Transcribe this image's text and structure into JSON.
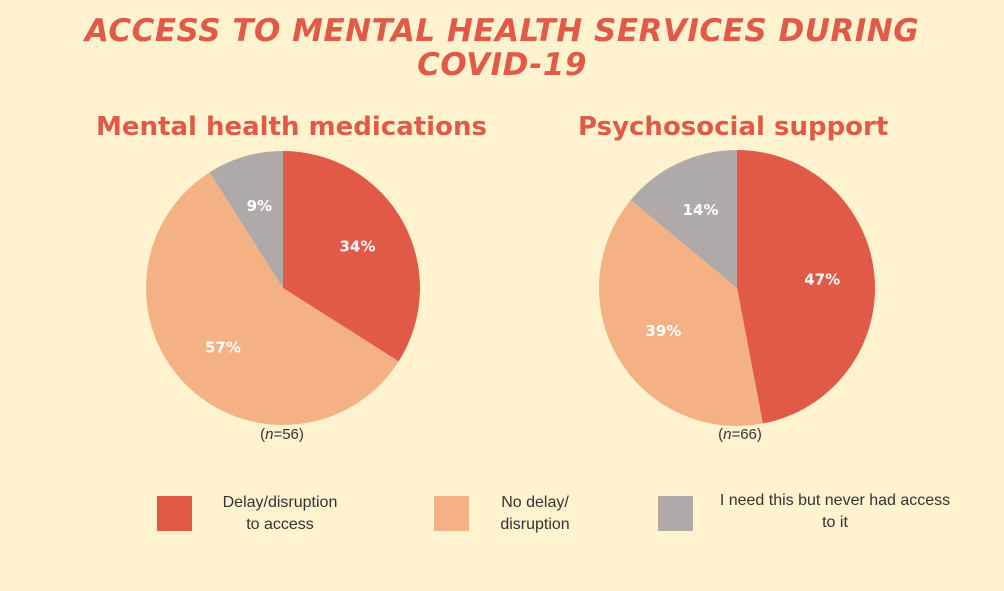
{
  "title_line1": "ACCESS TO MENTAL HEALTH SERVICES DURING",
  "title_line2": "COVID-19",
  "colors": {
    "delay": "#e15a47",
    "no_delay": "#f4b184",
    "no_access": "#afaaa9",
    "title": "#e15a47",
    "background": "#fff2cf"
  },
  "legend": [
    {
      "label": "Delay/disruption\nto access",
      "color": "#e15a47"
    },
    {
      "label": "No delay/\ndisruption",
      "color": "#f4b184"
    },
    {
      "label": "I need this but never had access\nto it",
      "color": "#afaaa9"
    }
  ],
  "chart_data": [
    {
      "type": "pie",
      "title": "Mental health medications",
      "n_prefix": "(",
      "n_italic": "n",
      "n_suffix": "=56)",
      "categories": [
        "Delay/disruption to access",
        "No delay/ disruption",
        "I need this but never had access to it"
      ],
      "values": [
        34,
        57,
        9
      ],
      "labels": [
        "34%",
        "57%",
        "9%"
      ]
    },
    {
      "type": "pie",
      "title": "Psychosocial support",
      "n_prefix": "(",
      "n_italic": "n",
      "n_suffix": "=66)",
      "categories": [
        "Delay/disruption to access",
        "No delay/ disruption",
        "I need this but never had access to it"
      ],
      "values": [
        47,
        39,
        14
      ],
      "labels": [
        "47%",
        "39%",
        "14%"
      ]
    }
  ]
}
